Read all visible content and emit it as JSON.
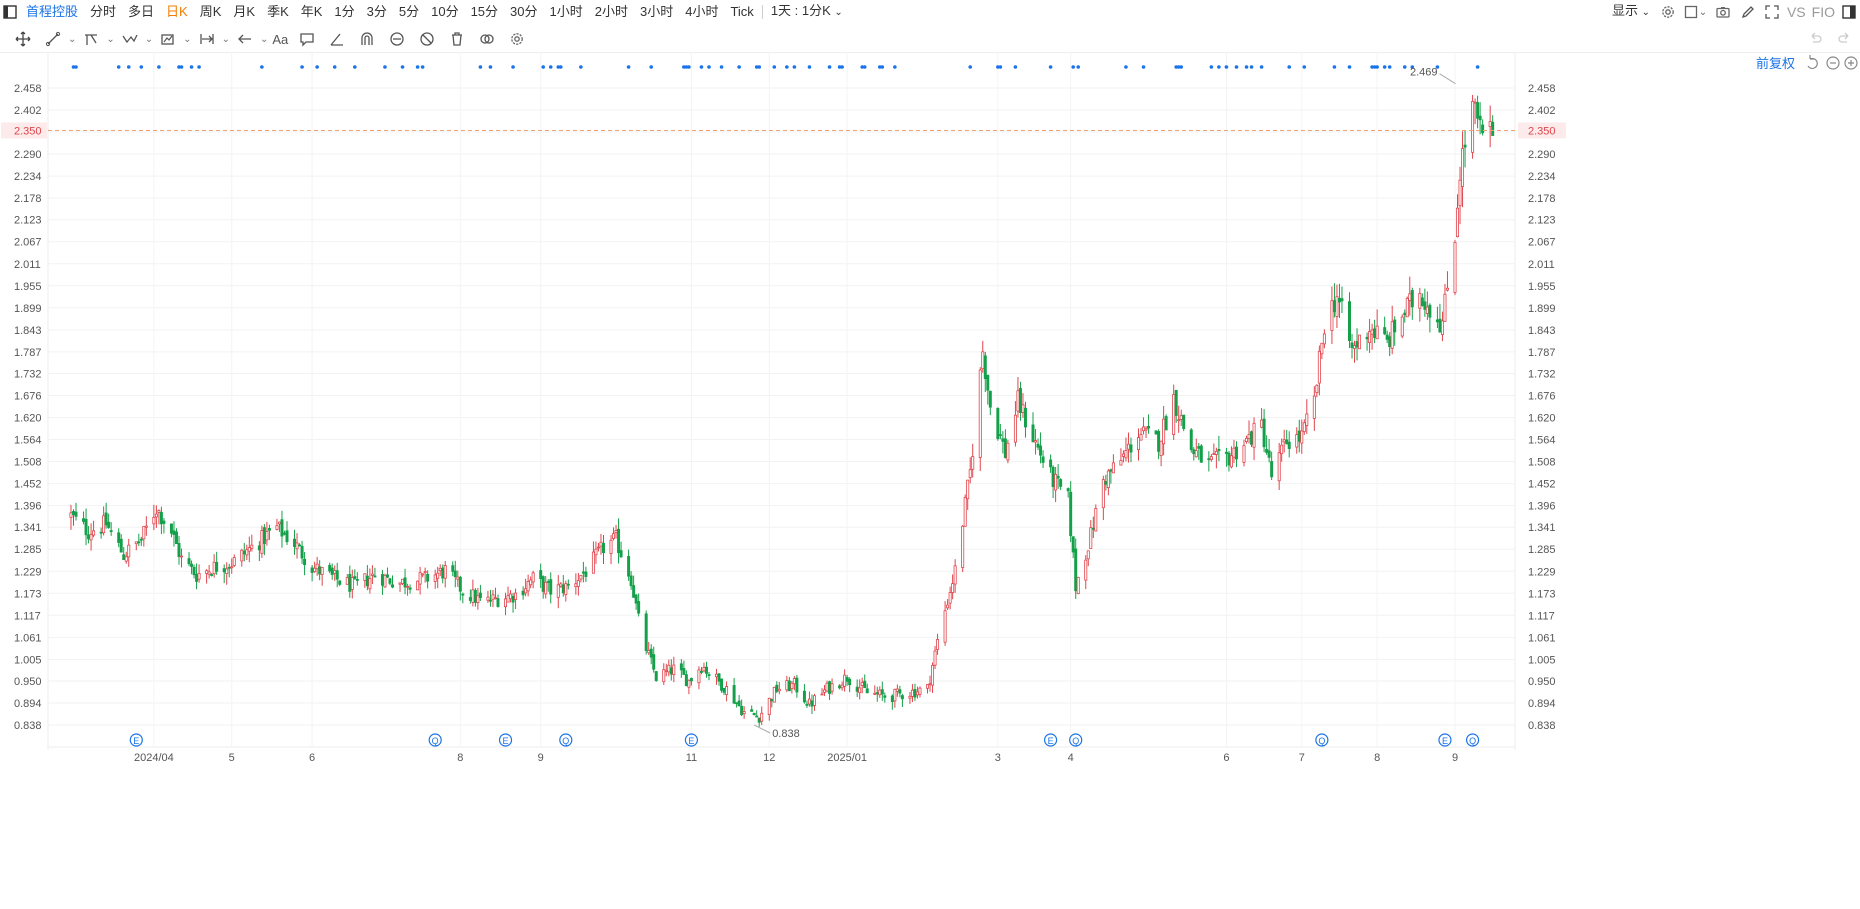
{
  "topbar": {
    "stock_name": "首程控股",
    "items": [
      "分时",
      "多日",
      "日K",
      "周K",
      "月K",
      "季K",
      "年K",
      "1分",
      "3分",
      "5分",
      "10分",
      "15分",
      "30分",
      "1小时",
      "2小时",
      "3小时",
      "4小时",
      "Tick"
    ],
    "active_item": "日K",
    "period_selector": "1天 : 1分K",
    "display_menu": "显示",
    "vs_label": "VS",
    "f10_label": "FIO"
  },
  "chart_toolbar": {
    "adjust_label": "前复权",
    "text_tool_label": "Aa"
  },
  "colors": {
    "up": "#e0454c",
    "down": "#15a04a",
    "accent": "#1a73e8",
    "active": "#f07d00",
    "price_line": "#f0a070"
  },
  "chart_data": {
    "type": "candlestick",
    "y_ticks": [
      "2.458",
      "2.402",
      "2.346",
      "2.290",
      "2.234",
      "2.178",
      "2.123",
      "2.067",
      "2.011",
      "1.955",
      "1.899",
      "1.843",
      "1.787",
      "1.732",
      "1.676",
      "1.620",
      "1.564",
      "1.508",
      "1.452",
      "1.396",
      "1.341",
      "1.285",
      "1.229",
      "1.173",
      "1.117",
      "1.061",
      "1.005",
      "0.950",
      "0.894",
      "0.838"
    ],
    "ylim": [
      0.838,
      2.458
    ],
    "x_labels": [
      {
        "label": "2024/04",
        "date": "2024-04-01"
      },
      {
        "label": "5",
        "date": "2024-05-02"
      },
      {
        "label": "6",
        "date": "2024-06-03"
      },
      {
        "label": "8",
        "date": "2024-08-01"
      },
      {
        "label": "9",
        "date": "2024-09-02"
      },
      {
        "label": "11",
        "date": "2024-11-01"
      },
      {
        "label": "12",
        "date": "2024-12-02"
      },
      {
        "label": "2025/01",
        "date": "2025-01-02"
      },
      {
        "label": "3",
        "date": "2025-03-03"
      },
      {
        "label": "4",
        "date": "2025-04-01"
      },
      {
        "label": "6",
        "date": "2025-06-02"
      },
      {
        "label": "7",
        "date": "2025-07-02"
      },
      {
        "label": "8",
        "date": "2025-08-01"
      },
      {
        "label": "9",
        "date": "2025-09-01"
      }
    ],
    "current_price": "2.350",
    "max_label": {
      "value": "2.469",
      "date": "2025-09-02"
    },
    "min_label": {
      "value": "0.838",
      "date": "2024-11-26"
    },
    "events": [
      {
        "type": "E",
        "date": "2024-03-25"
      },
      {
        "type": "Q",
        "date": "2024-07-22"
      },
      {
        "type": "E",
        "date": "2024-08-19"
      },
      {
        "type": "Q",
        "date": "2024-09-12"
      },
      {
        "type": "E",
        "date": "2024-11-01"
      },
      {
        "type": "E",
        "date": "2025-03-24"
      },
      {
        "type": "Q",
        "date": "2025-04-03"
      },
      {
        "type": "Q",
        "date": "2025-07-10"
      },
      {
        "type": "E",
        "date": "2025-08-28"
      },
      {
        "type": "Q",
        "date": "2025-09-08"
      }
    ],
    "anchors": [
      [
        "2024-02-28",
        1.37
      ],
      [
        "2024-03-06",
        1.33
      ],
      [
        "2024-03-13",
        1.35
      ],
      [
        "2024-03-20",
        1.27
      ],
      [
        "2024-03-27",
        1.31
      ],
      [
        "2024-04-02",
        1.39
      ],
      [
        "2024-04-08",
        1.33
      ],
      [
        "2024-04-12",
        1.26
      ],
      [
        "2024-04-18",
        1.22
      ],
      [
        "2024-04-25",
        1.24
      ],
      [
        "2024-05-02",
        1.25
      ],
      [
        "2024-05-08",
        1.28
      ],
      [
        "2024-05-14",
        1.31
      ],
      [
        "2024-05-20",
        1.34
      ],
      [
        "2024-05-27",
        1.3
      ],
      [
        "2024-06-03",
        1.24
      ],
      [
        "2024-06-12",
        1.21
      ],
      [
        "2024-06-20",
        1.19
      ],
      [
        "2024-06-28",
        1.22
      ],
      [
        "2024-07-08",
        1.2
      ],
      [
        "2024-07-18",
        1.21
      ],
      [
        "2024-07-26",
        1.23
      ],
      [
        "2024-08-02",
        1.18
      ],
      [
        "2024-08-10",
        1.15
      ],
      [
        "2024-08-16",
        1.16
      ],
      [
        "2024-08-23",
        1.17
      ],
      [
        "2024-08-30",
        1.21
      ],
      [
        "2024-09-06",
        1.18
      ],
      [
        "2024-09-13",
        1.19
      ],
      [
        "2024-09-20",
        1.23
      ],
      [
        "2024-09-27",
        1.29
      ],
      [
        "2024-10-02",
        1.31
      ],
      [
        "2024-10-08",
        1.21
      ],
      [
        "2024-10-12",
        1.07
      ],
      [
        "2024-10-18",
        0.96
      ],
      [
        "2024-10-25",
        0.98
      ],
      [
        "2024-10-31",
        0.95
      ],
      [
        "2024-11-05",
        0.99
      ],
      [
        "2024-11-10",
        0.96
      ],
      [
        "2024-11-15",
        0.93
      ],
      [
        "2024-11-22",
        0.87
      ],
      [
        "2024-11-28",
        0.86
      ],
      [
        "2024-12-05",
        0.93
      ],
      [
        "2024-12-12",
        0.94
      ],
      [
        "2024-12-18",
        0.89
      ],
      [
        "2024-12-25",
        0.93
      ],
      [
        "2025-01-02",
        0.96
      ],
      [
        "2025-01-10",
        0.92
      ],
      [
        "2025-01-18",
        0.91
      ],
      [
        "2025-01-26",
        0.92
      ],
      [
        "2025-02-03",
        0.93
      ],
      [
        "2025-02-08",
        1.08
      ],
      [
        "2025-02-14",
        1.23
      ],
      [
        "2025-02-20",
        1.48
      ],
      [
        "2025-02-25",
        1.79
      ],
      [
        "2025-02-28",
        1.65
      ],
      [
        "2025-03-06",
        1.53
      ],
      [
        "2025-03-11",
        1.66
      ],
      [
        "2025-03-17",
        1.57
      ],
      [
        "2025-03-24",
        1.47
      ],
      [
        "2025-03-31",
        1.41
      ],
      [
        "2025-04-03",
        1.19
      ],
      [
        "2025-04-09",
        1.32
      ],
      [
        "2025-04-14",
        1.46
      ],
      [
        "2025-04-21",
        1.51
      ],
      [
        "2025-04-28",
        1.58
      ],
      [
        "2025-05-06",
        1.56
      ],
      [
        "2025-05-12",
        1.67
      ],
      [
        "2025-05-19",
        1.54
      ],
      [
        "2025-05-26",
        1.5
      ],
      [
        "2025-06-03",
        1.52
      ],
      [
        "2025-06-10",
        1.56
      ],
      [
        "2025-06-16",
        1.6
      ],
      [
        "2025-06-20",
        1.47
      ],
      [
        "2025-06-26",
        1.56
      ],
      [
        "2025-07-02",
        1.57
      ],
      [
        "2025-07-07",
        1.66
      ],
      [
        "2025-07-11",
        1.86
      ],
      [
        "2025-07-16",
        1.93
      ],
      [
        "2025-07-22",
        1.79
      ],
      [
        "2025-07-29",
        1.85
      ],
      [
        "2025-08-05",
        1.81
      ],
      [
        "2025-08-11",
        1.88
      ],
      [
        "2025-08-18",
        1.94
      ],
      [
        "2025-08-22",
        1.9
      ],
      [
        "2025-08-27",
        1.86
      ],
      [
        "2025-09-01",
        2.09
      ],
      [
        "2025-09-03",
        2.25
      ],
      [
        "2025-09-08",
        2.41
      ],
      [
        "2025-09-12",
        2.33
      ],
      [
        "2025-09-16",
        2.35
      ]
    ],
    "last_date": "2025-09-16"
  }
}
